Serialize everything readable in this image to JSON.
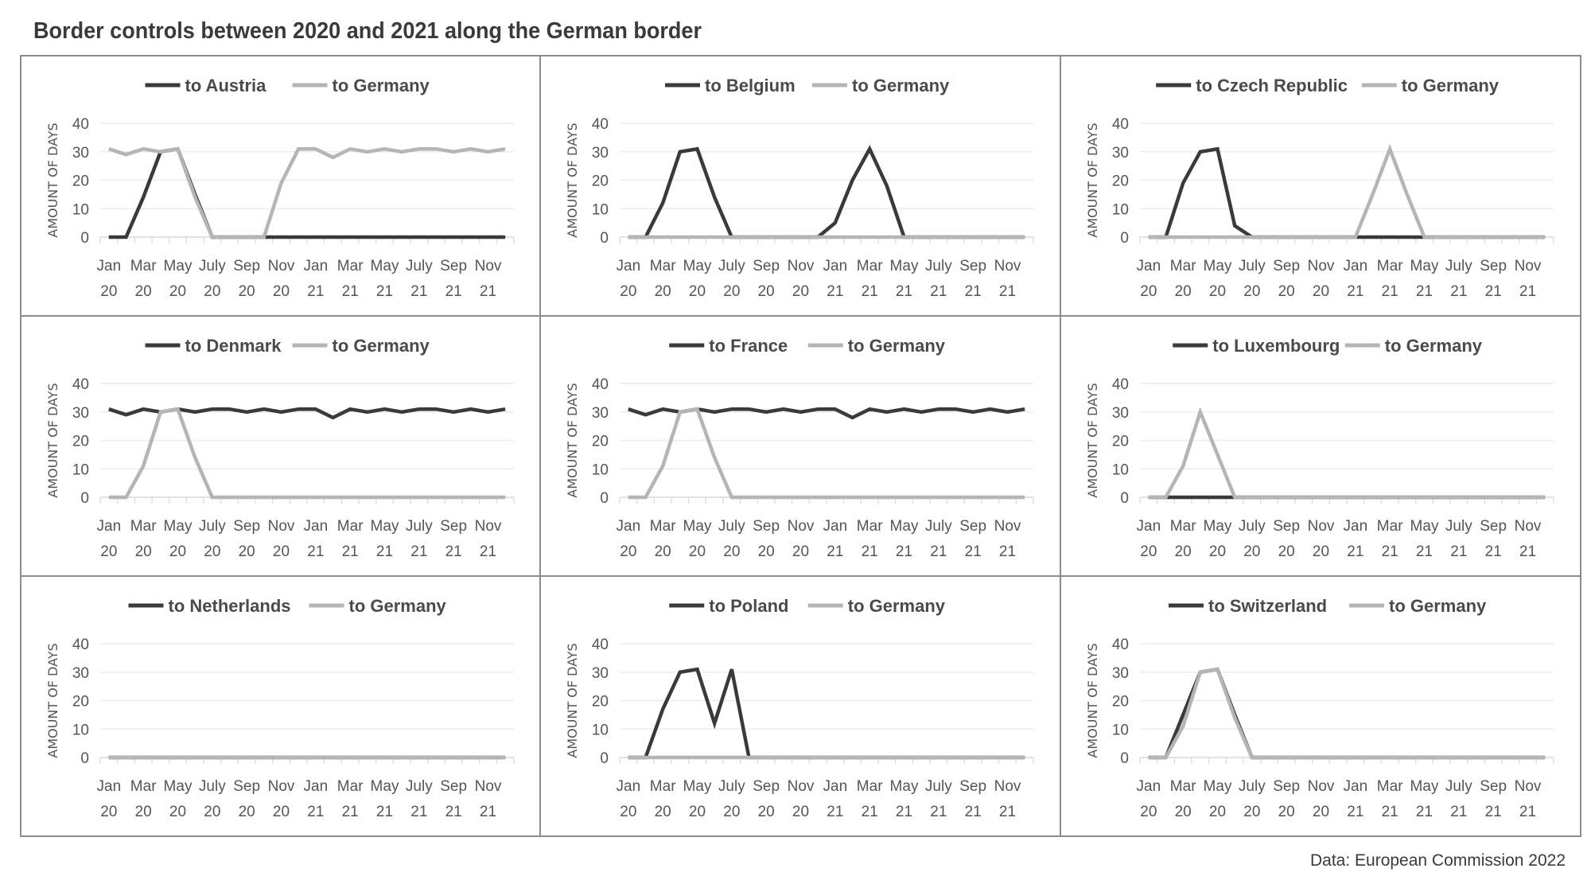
{
  "title": "Border controls between 2020 and 2021 along the German border",
  "source": "Data: European Commission 2022",
  "colors": {
    "country": "#3a3a3a",
    "germany": "#b5b5b5",
    "grid": "#ececec",
    "border": "#8c8c8c"
  },
  "chart_data": {
    "type": "line",
    "ylabel": "AMOUNT OF DAYS",
    "ylim": [
      0,
      40
    ],
    "yticks": [
      "0",
      "10",
      "20",
      "30",
      "40"
    ],
    "grid": true,
    "legend": "top-center",
    "months": [
      "Jan 20",
      "Feb 20",
      "Mar 20",
      "Apr 20",
      "May 20",
      "Jun 20",
      "Jul 20",
      "Aug 20",
      "Sep 20",
      "Oct 20",
      "Nov 20",
      "Dec 20",
      "Jan 21",
      "Feb 21",
      "Mar 21",
      "Apr 21",
      "May 21",
      "Jun 21",
      "Jul 21",
      "Aug 21",
      "Sep 21",
      "Oct 21",
      "Nov 21",
      "Dec 21"
    ],
    "xtick_labels": [
      [
        "Jan",
        "20"
      ],
      [
        "Mar",
        "20"
      ],
      [
        "May",
        "20"
      ],
      [
        "July",
        "20"
      ],
      [
        "Sep",
        "20"
      ],
      [
        "Nov",
        "20"
      ],
      [
        "Jan",
        "21"
      ],
      [
        "Mar",
        "21"
      ],
      [
        "May",
        "21"
      ],
      [
        "July",
        "21"
      ],
      [
        "Sep",
        "21"
      ],
      [
        "Nov",
        "21"
      ]
    ],
    "panels": [
      {
        "series": [
          {
            "name": "to Austria",
            "values": [
              0,
              0,
              14,
              30,
              31,
              15,
              0,
              0,
              0,
              0,
              0,
              0,
              0,
              0,
              0,
              0,
              0,
              0,
              0,
              0,
              0,
              0,
              0,
              0
            ]
          },
          {
            "name": "to Germany",
            "values": [
              31,
              29,
              31,
              30,
              31,
              14,
              0,
              0,
              0,
              0,
              19,
              31,
              31,
              28,
              31,
              30,
              31,
              30,
              31,
              31,
              30,
              31,
              30,
              31
            ]
          }
        ]
      },
      {
        "series": [
          {
            "name": "to Belgium",
            "values": [
              0,
              0,
              12,
              30,
              31,
              14,
              0,
              0,
              0,
              0,
              0,
              0,
              5,
              20,
              31,
              18,
              0,
              0,
              0,
              0,
              0,
              0,
              0,
              0
            ]
          },
          {
            "name": "to Germany",
            "values": [
              0,
              0,
              0,
              0,
              0,
              0,
              0,
              0,
              0,
              0,
              0,
              0,
              0,
              0,
              0,
              0,
              0,
              0,
              0,
              0,
              0,
              0,
              0,
              0
            ]
          }
        ]
      },
      {
        "series": [
          {
            "name": "to Czech Republic",
            "values": [
              0,
              0,
              19,
              30,
              31,
              4,
              0,
              0,
              0,
              0,
              0,
              0,
              0,
              0,
              0,
              0,
              0,
              0,
              0,
              0,
              0,
              0,
              0,
              0
            ]
          },
          {
            "name": "to Germany",
            "values": [
              0,
              0,
              0,
              0,
              0,
              0,
              0,
              0,
              0,
              0,
              0,
              0,
              0,
              15,
              31,
              15,
              0,
              0,
              0,
              0,
              0,
              0,
              0,
              0
            ]
          }
        ]
      },
      {
        "series": [
          {
            "name": "to Denmark",
            "values": [
              31,
              29,
              31,
              30,
              31,
              30,
              31,
              31,
              30,
              31,
              30,
              31,
              31,
              28,
              31,
              30,
              31,
              30,
              31,
              31,
              30,
              31,
              30,
              31
            ]
          },
          {
            "name": "to Germany",
            "values": [
              0,
              0,
              11,
              30,
              31,
              14,
              0,
              0,
              0,
              0,
              0,
              0,
              0,
              0,
              0,
              0,
              0,
              0,
              0,
              0,
              0,
              0,
              0,
              0
            ]
          }
        ]
      },
      {
        "series": [
          {
            "name": "to France",
            "values": [
              31,
              29,
              31,
              30,
              31,
              30,
              31,
              31,
              30,
              31,
              30,
              31,
              31,
              28,
              31,
              30,
              31,
              30,
              31,
              31,
              30,
              31,
              30,
              31
            ]
          },
          {
            "name": "to Germany",
            "values": [
              0,
              0,
              11,
              30,
              31,
              14,
              0,
              0,
              0,
              0,
              0,
              0,
              0,
              0,
              0,
              0,
              0,
              0,
              0,
              0,
              0,
              0,
              0,
              0
            ]
          }
        ]
      },
      {
        "series": [
          {
            "name": "to Luxembourg",
            "values": [
              0,
              0,
              0,
              0,
              0,
              0,
              0,
              0,
              0,
              0,
              0,
              0,
              0,
              0,
              0,
              0,
              0,
              0,
              0,
              0,
              0,
              0,
              0,
              0
            ]
          },
          {
            "name": "to Germany",
            "values": [
              0,
              0,
              11,
              30,
              15,
              0,
              0,
              0,
              0,
              0,
              0,
              0,
              0,
              0,
              0,
              0,
              0,
              0,
              0,
              0,
              0,
              0,
              0,
              0
            ]
          }
        ]
      },
      {
        "series": [
          {
            "name": "to Netherlands",
            "values": [
              0,
              0,
              0,
              0,
              0,
              0,
              0,
              0,
              0,
              0,
              0,
              0,
              0,
              0,
              0,
              0,
              0,
              0,
              0,
              0,
              0,
              0,
              0,
              0
            ]
          },
          {
            "name": "to Germany",
            "values": [
              0,
              0,
              0,
              0,
              0,
              0,
              0,
              0,
              0,
              0,
              0,
              0,
              0,
              0,
              0,
              0,
              0,
              0,
              0,
              0,
              0,
              0,
              0,
              0
            ]
          }
        ]
      },
      {
        "series": [
          {
            "name": "to Poland",
            "values": [
              0,
              0,
              17,
              30,
              31,
              12,
              31,
              0,
              0,
              0,
              0,
              0,
              0,
              0,
              0,
              0,
              0,
              0,
              0,
              0,
              0,
              0,
              0,
              0
            ]
          },
          {
            "name": "to Germany",
            "values": [
              0,
              0,
              0,
              0,
              0,
              0,
              0,
              0,
              0,
              0,
              0,
              0,
              0,
              0,
              0,
              0,
              0,
              0,
              0,
              0,
              0,
              0,
              0,
              0
            ]
          }
        ]
      },
      {
        "series": [
          {
            "name": "to Switzerland",
            "values": [
              0,
              0,
              15,
              30,
              31,
              15,
              0,
              0,
              0,
              0,
              0,
              0,
              0,
              0,
              0,
              0,
              0,
              0,
              0,
              0,
              0,
              0,
              0,
              0
            ]
          },
          {
            "name": "to Germany",
            "values": [
              0,
              0,
              11,
              30,
              31,
              14,
              0,
              0,
              0,
              0,
              0,
              0,
              0,
              0,
              0,
              0,
              0,
              0,
              0,
              0,
              0,
              0,
              0,
              0
            ]
          }
        ]
      }
    ]
  }
}
